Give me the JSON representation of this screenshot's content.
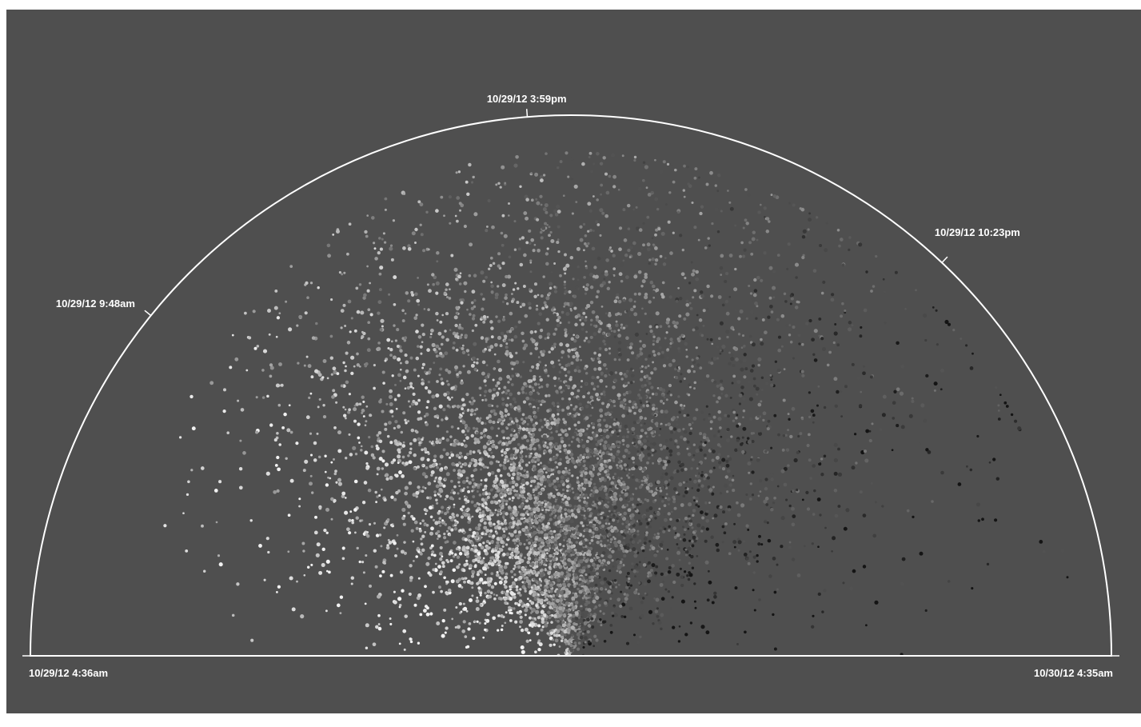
{
  "chart_data": {
    "type": "scatter",
    "layout": "semicircle-radial",
    "title": "",
    "xlabel": "",
    "ylabel": "",
    "grid": false,
    "legend": "none",
    "angular_axis": {
      "start": "10/29/12 4:36am",
      "end": "10/30/12 4:35am",
      "ticks": [
        {
          "label": "10/29/12 4:36am",
          "fraction": 0.0
        },
        {
          "label": "10/29/12 9:48am",
          "fraction": 0.2167
        },
        {
          "label": "10/29/12 3:59pm",
          "fraction": 0.4743
        },
        {
          "label": "10/29/12 10:23pm",
          "fraction": 0.7408
        },
        {
          "label": "10/30/12 4:35am",
          "fraction": 1.0
        }
      ]
    },
    "radial_range": [
      0,
      1
    ],
    "point_count": 6500,
    "density_peak_fraction": 0.48,
    "colors": {
      "background": "#4f4f4f",
      "outline": "#ffffff",
      "early_points": "#f2f2f2",
      "late_points": "#141414"
    }
  }
}
